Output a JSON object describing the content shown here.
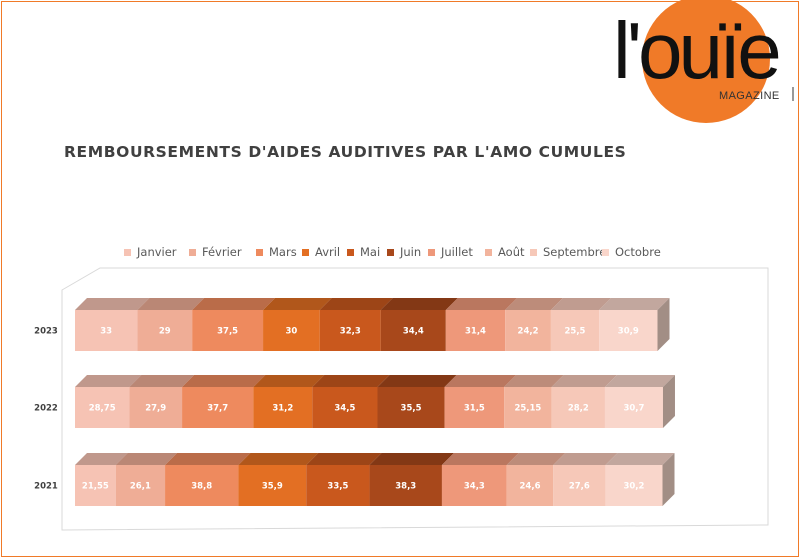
{
  "brand": {
    "logo_text": "l'ouïe",
    "logo_sub": "MAGAZINE",
    "accent": "#f07a28"
  },
  "title": "REMBOURSEMENTS D'AIDES AUDITIVES PAR L'AMO CUMULES",
  "legend": [
    {
      "label": "Janvier",
      "color": "#f6c3b4"
    },
    {
      "label": "Février",
      "color": "#efad96"
    },
    {
      "label": "Mars",
      "color": "#ee8a5e"
    },
    {
      "label": "Avril",
      "color": "#e36f23"
    },
    {
      "label": "Mai",
      "color": "#c9581d"
    },
    {
      "label": "Juin",
      "color": "#a8481b"
    },
    {
      "label": "Juillet",
      "color": "#ee987a"
    },
    {
      "label": "Août",
      "color": "#f2b49d"
    },
    {
      "label": "Septembre",
      "color": "#f6c8b8"
    },
    {
      "label": "Octobre",
      "color": "#f9d6cb"
    }
  ],
  "chart_data": {
    "type": "bar",
    "orientation": "horizontal",
    "stacked": true,
    "style": "3d",
    "title": "REMBOURSEMENTS D'AIDES AUDITIVES PAR L'AMO CUMULES",
    "categories": [
      "2023",
      "2022",
      "2021"
    ],
    "series": [
      {
        "name": "Janvier",
        "values": [
          33,
          28.75,
          21.55
        ],
        "labels": [
          "33",
          "28,75",
          "21,55"
        ]
      },
      {
        "name": "Février",
        "values": [
          29,
          27.9,
          26.1
        ],
        "labels": [
          "29",
          "27,9",
          "26,1"
        ]
      },
      {
        "name": "Mars",
        "values": [
          37.5,
          37.7,
          38.8
        ],
        "labels": [
          "37,5",
          "37,7",
          "38,8"
        ]
      },
      {
        "name": "Avril",
        "values": [
          30,
          31.2,
          35.9
        ],
        "labels": [
          "30",
          "31,2",
          "35,9"
        ]
      },
      {
        "name": "Mai",
        "values": [
          32.3,
          34.5,
          33.5
        ],
        "labels": [
          "32,3",
          "34,5",
          "33,5"
        ]
      },
      {
        "name": "Juin",
        "values": [
          34.4,
          35.5,
          38.3
        ],
        "labels": [
          "34,4",
          "35,5",
          "38,3"
        ]
      },
      {
        "name": "Juillet",
        "values": [
          31.4,
          31.5,
          34.3
        ],
        "labels": [
          "31,4",
          "31,5",
          "34,3"
        ]
      },
      {
        "name": "Août",
        "values": [
          24.2,
          25.15,
          24.6
        ],
        "labels": [
          "24,2",
          "25,15",
          "24,6"
        ]
      },
      {
        "name": "Septembre",
        "values": [
          25.5,
          28.2,
          27.6
        ],
        "labels": [
          "25,5",
          "28,2",
          "27,6"
        ]
      },
      {
        "name": "Octobre",
        "values": [
          30.9,
          30.7,
          30.2
        ],
        "labels": [
          "30,9",
          "30,7",
          "30,2"
        ]
      }
    ],
    "legend_position": "top",
    "data_labels": true,
    "grid": false
  }
}
